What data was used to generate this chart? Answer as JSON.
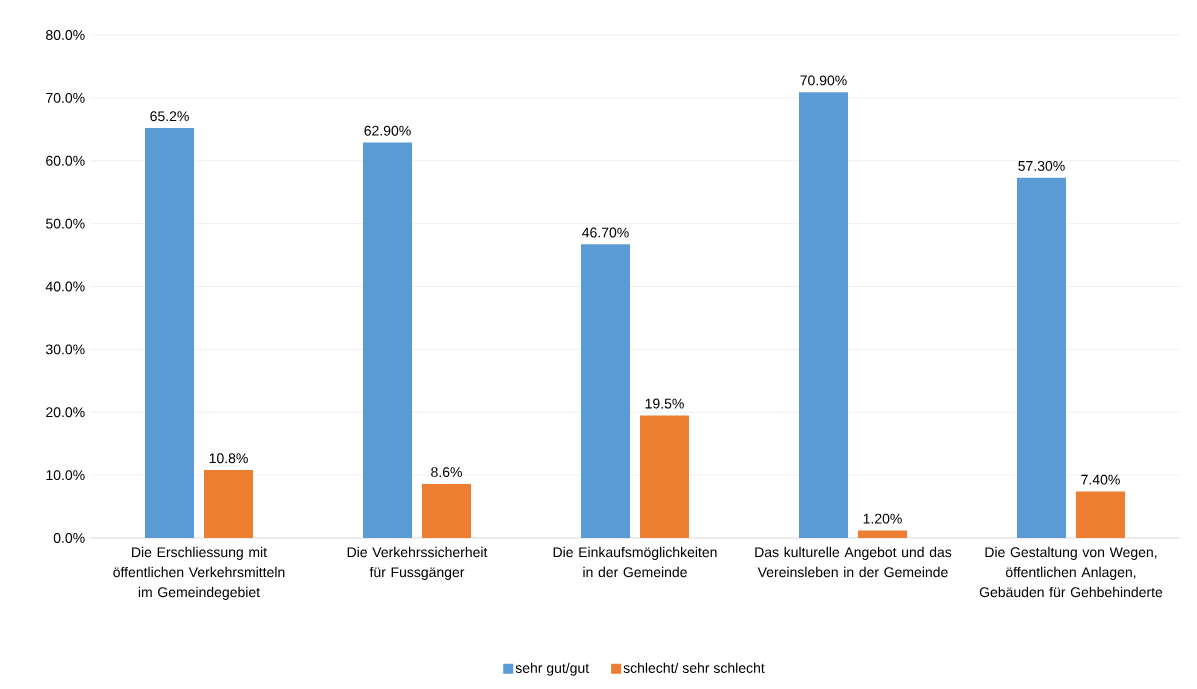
{
  "chart_data": {
    "type": "bar",
    "categories": [
      "Die Erschliessung mit öffentlichen Verkehrsmitteln im Gemeindegebiet",
      "Die Verkehrssicherheit für Fussgänger",
      "Die Einkaufsmöglichkeiten in der Gemeinde",
      "Das kulturelle Angebot und das Vereinsleben in der Gemeinde",
      "Die Gestaltung von Wegen, öffentlichen Anlagen, Gebäuden für Gehbehinderte"
    ],
    "series": [
      {
        "name": "sehr gut/gut",
        "color": "#5b9bd5",
        "values": [
          65.2,
          62.9,
          46.7,
          70.9,
          57.3
        ],
        "value_labels": [
          "65.2%",
          "62.90%",
          "46.70%",
          "70.90%",
          "57.30%"
        ]
      },
      {
        "name": "schlecht/ sehr schlecht",
        "color": "#ed7d31",
        "values": [
          10.8,
          8.6,
          19.5,
          1.2,
          7.4
        ],
        "value_labels": [
          "10.8%",
          "8.6%",
          "19.5%",
          "1.20%",
          "7.40%"
        ]
      }
    ],
    "ylim": [
      0,
      80
    ],
    "yticks": [
      {
        "value": 0,
        "label": "0.0%"
      },
      {
        "value": 10,
        "label": "10.0%"
      },
      {
        "value": 20,
        "label": "20.0%"
      },
      {
        "value": 30,
        "label": "30.0%"
      },
      {
        "value": 40,
        "label": "40.0%"
      },
      {
        "value": 50,
        "label": "50.0%"
      },
      {
        "value": 60,
        "label": "60.0%"
      },
      {
        "value": 70,
        "label": "70.0%"
      },
      {
        "value": 80,
        "label": "80.0%"
      }
    ],
    "grid": "y",
    "legend": "bottom"
  }
}
